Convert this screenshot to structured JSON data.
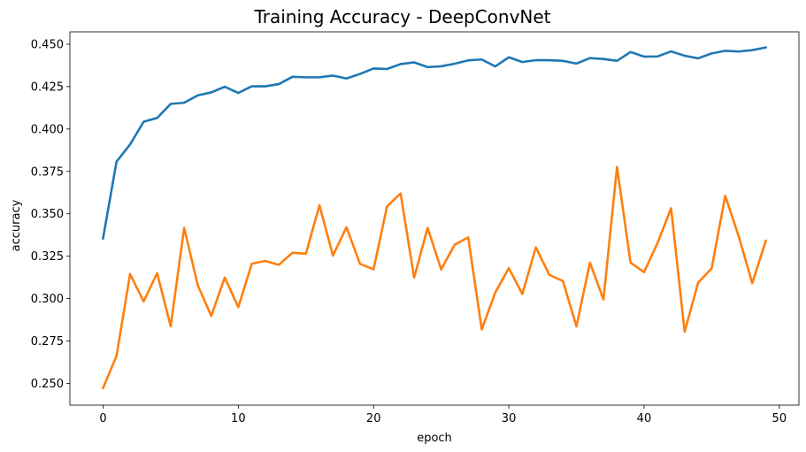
{
  "chart_data": {
    "type": "line",
    "title": "Training Accuracy - DeepConvNet",
    "xlabel": "epoch",
    "ylabel": "accuracy",
    "xlim": [
      -2.45,
      51.45
    ],
    "ylim": [
      0.2372,
      0.4573
    ],
    "xticks": [
      0,
      10,
      20,
      30,
      40,
      50
    ],
    "yticks": [
      0.25,
      0.275,
      0.3,
      0.325,
      0.35,
      0.375,
      0.4,
      0.425,
      0.45
    ],
    "ytick_labels": [
      "0.250",
      "0.275",
      "0.300",
      "0.325",
      "0.350",
      "0.375",
      "0.400",
      "0.425",
      "0.450"
    ],
    "grid": false,
    "legend": "none",
    "x": [
      0,
      1,
      2,
      3,
      4,
      5,
      6,
      7,
      8,
      9,
      10,
      11,
      12,
      13,
      14,
      15,
      16,
      17,
      18,
      19,
      20,
      21,
      22,
      23,
      24,
      25,
      26,
      27,
      28,
      29,
      30,
      31,
      32,
      33,
      34,
      35,
      36,
      37,
      38,
      39,
      40,
      41,
      42,
      43,
      44,
      45,
      46,
      47,
      48,
      49
    ],
    "series": [
      {
        "color": "#1f77b4",
        "values": [
          0.3355,
          0.3808,
          0.3909,
          0.4043,
          0.4065,
          0.4148,
          0.4155,
          0.4198,
          0.4216,
          0.4249,
          0.4213,
          0.4252,
          0.4252,
          0.4265,
          0.4308,
          0.4305,
          0.4305,
          0.4315,
          0.4298,
          0.4325,
          0.4357,
          0.4354,
          0.4383,
          0.4393,
          0.4365,
          0.437,
          0.4385,
          0.4405,
          0.441,
          0.4369,
          0.4423,
          0.4395,
          0.4406,
          0.4406,
          0.4402,
          0.4386,
          0.4418,
          0.4413,
          0.4402,
          0.4454,
          0.4427,
          0.4428,
          0.4458,
          0.4432,
          0.4417,
          0.4446,
          0.4461,
          0.4457,
          0.4465,
          0.4481
        ]
      },
      {
        "color": "#ff7f0e",
        "values": [
          0.2472,
          0.2663,
          0.3145,
          0.2983,
          0.315,
          0.2837,
          0.3417,
          0.308,
          0.2898,
          0.3124,
          0.295,
          0.3206,
          0.3222,
          0.3199,
          0.327,
          0.3265,
          0.355,
          0.3254,
          0.3421,
          0.3205,
          0.3173,
          0.3544,
          0.362,
          0.3124,
          0.3417,
          0.3172,
          0.3318,
          0.3361,
          0.2818,
          0.3036,
          0.3179,
          0.3027,
          0.3302,
          0.314,
          0.3104,
          0.2836,
          0.3212,
          0.2995,
          0.3776,
          0.3212,
          0.3156,
          0.3328,
          0.3533,
          0.2805,
          0.3094,
          0.3179,
          0.3606,
          0.3367,
          0.3091,
          0.3341
        ]
      }
    ]
  }
}
